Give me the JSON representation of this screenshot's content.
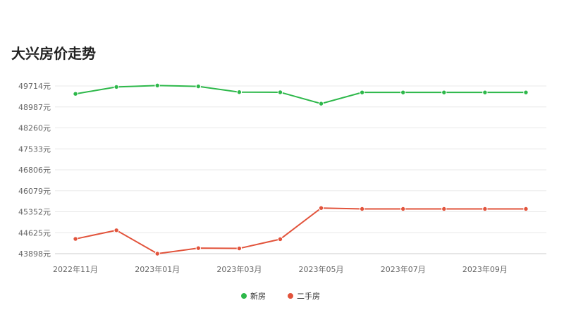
{
  "page": {
    "title": "大兴房价走势"
  },
  "chart_data": {
    "type": "line",
    "y_ticks": [
      "43898元",
      "44625元",
      "45352元",
      "46079元",
      "46806元",
      "47533元",
      "48260元",
      "48987元",
      "49714元"
    ],
    "y_tick_values": [
      43898,
      44625,
      45352,
      46079,
      46806,
      47533,
      48260,
      48987,
      49714
    ],
    "ylim": [
      43898,
      49714
    ],
    "x": [
      "2022年11月",
      "2022年12月",
      "2023年01月",
      "2023年02月",
      "2023年03月",
      "2023年04月",
      "2023年05月",
      "2023年06月",
      "2023年07月",
      "2023年08月",
      "2023年09月",
      "2023年10月"
    ],
    "x_tick_labels": [
      "2022年11月",
      "",
      "2023年01月",
      "",
      "2023年03月",
      "",
      "2023年05月",
      "",
      "2023年07月",
      "",
      "2023年09月",
      ""
    ],
    "series": [
      {
        "name": "新房",
        "color": "#2db84a",
        "values": [
          49440,
          49680,
          49730,
          49700,
          49500,
          49495,
          49100,
          49490,
          49490,
          49490,
          49490,
          49490
        ]
      },
      {
        "name": "二手房",
        "color": "#e2533b",
        "values": [
          44410,
          44710,
          43898,
          44090,
          44080,
          44400,
          45480,
          45450,
          45450,
          45450,
          45450,
          45450
        ]
      }
    ],
    "grid": true,
    "legend_position": "bottom-center"
  }
}
